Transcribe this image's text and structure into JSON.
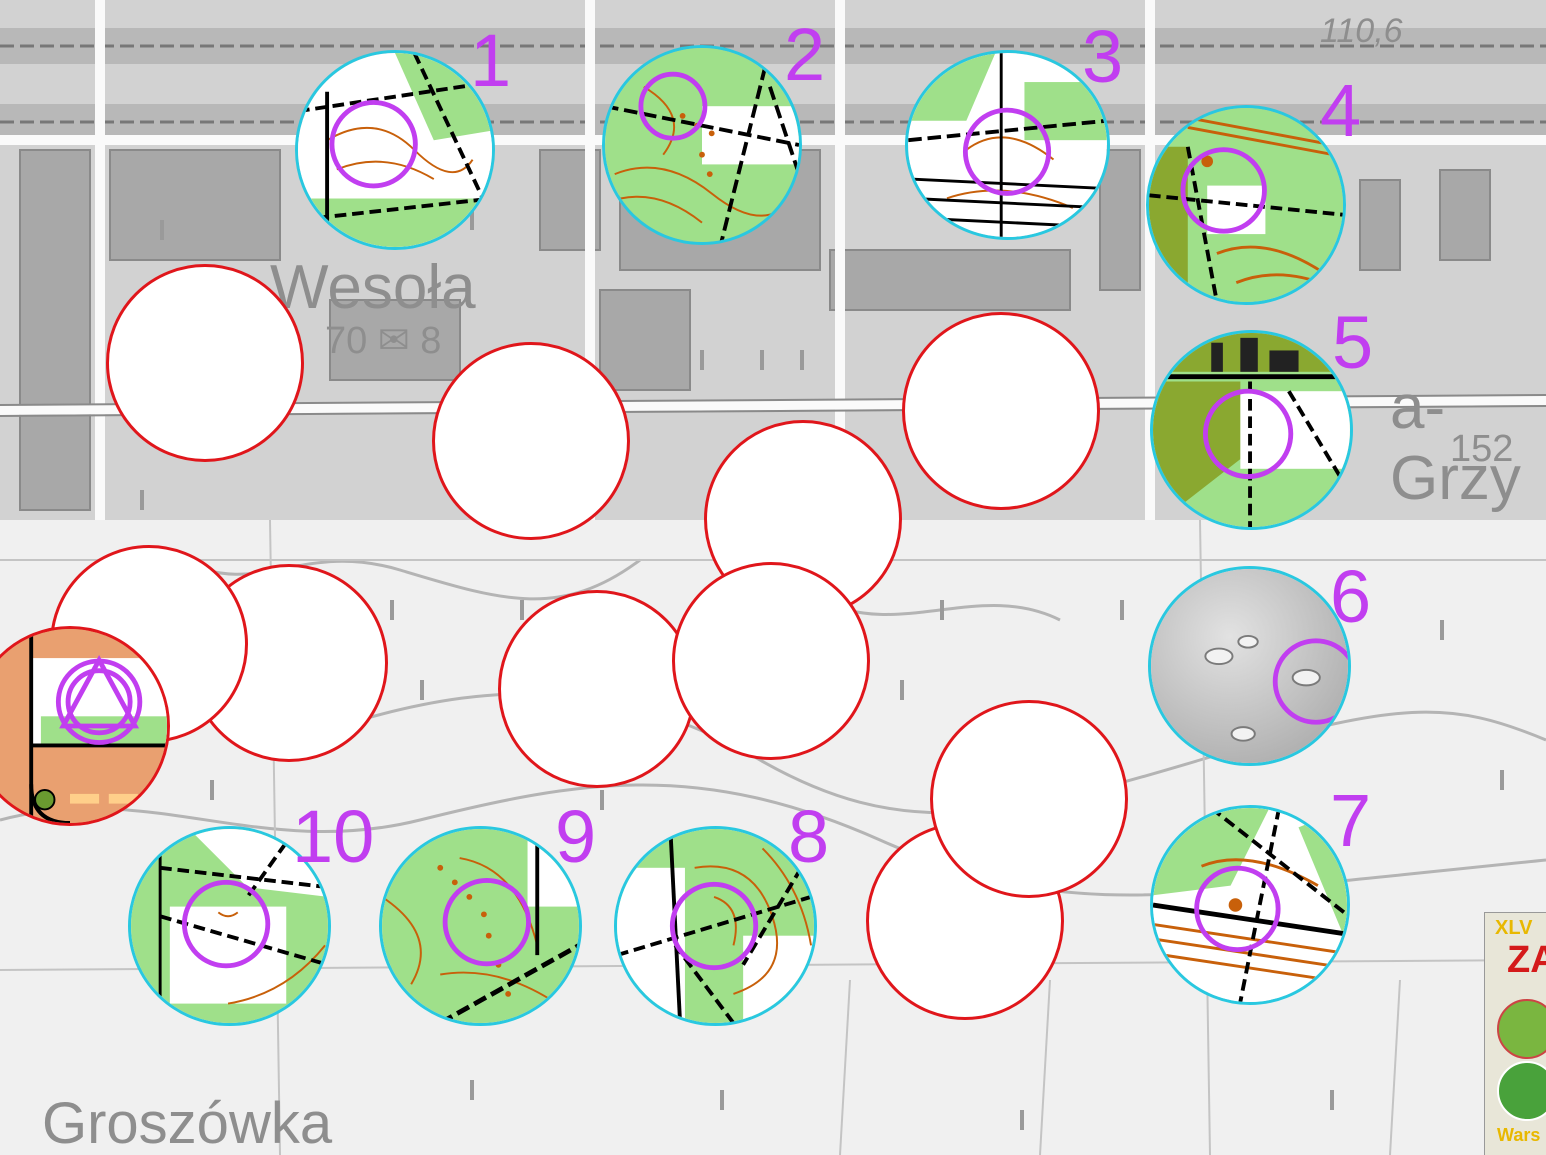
{
  "map": {
    "place_names": {
      "wesola": "Wesoła",
      "wesola_sub": "70 ✉ 8",
      "grzy": "a-Grzy",
      "grzy_sub": "152",
      "groszowka": "Groszówka",
      "elevation": "110,6"
    },
    "colors": {
      "control_ring": "#29c8e0",
      "circle_marker": "#c13ef0",
      "blank_ring": "#e0161b",
      "base_gray": "#9a9a9a",
      "green": "#9fe08a",
      "contour": "#c8600a"
    }
  },
  "controls": [
    {
      "number": "1",
      "terrain": "green-roads"
    },
    {
      "number": "2",
      "terrain": "green-dots"
    },
    {
      "number": "3",
      "terrain": "rails"
    },
    {
      "number": "4",
      "terrain": "olive-contours"
    },
    {
      "number": "5",
      "terrain": "olive-buildings"
    },
    {
      "number": "6",
      "terrain": "lidar-hillshade"
    },
    {
      "number": "7",
      "terrain": "rails-green"
    },
    {
      "number": "8",
      "terrain": "paths"
    },
    {
      "number": "9",
      "terrain": "green-dots"
    },
    {
      "number": "10",
      "terrain": "open-paths"
    }
  ],
  "start": {
    "symbol": "start-triangle"
  },
  "logo": {
    "line1": "XLV",
    "line2": "ZA",
    "line3": "Wars"
  }
}
